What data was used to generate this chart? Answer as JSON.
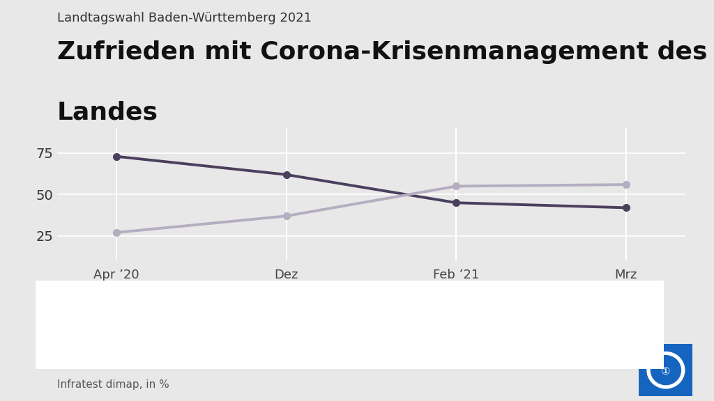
{
  "supertitle": "Landtagswahl Baden-Württemberg 2021",
  "title_line1": "Zufrieden mit Corona-Krisenmanagement des",
  "title_line2": "Landes",
  "x_labels": [
    "Apr ’20",
    "Dez",
    "Feb ’21",
    "Mrz"
  ],
  "x_values": [
    0,
    1,
    2,
    3
  ],
  "zufrieden": [
    73,
    62,
    45,
    42
  ],
  "unzufrieden": [
    27,
    37,
    55,
    56
  ],
  "zufrieden_color": "#4a3f5c",
  "unzufrieden_color": "#b5adc0",
  "bg_color": "#e8e8e8",
  "chart_bg_color": "#e8e8e8",
  "table_bg_color": "#ffffff",
  "yticks": [
    25,
    50,
    75
  ],
  "ylim": [
    10,
    90
  ],
  "source": "Infratest dimap, in %",
  "supertitle_fontsize": 13,
  "title_fontsize": 26,
  "source_fontsize": 11,
  "tick_fontsize": 14,
  "xlabel_fontsize": 13,
  "table_label_fontsize": 12,
  "table_value_fontsize": 20
}
